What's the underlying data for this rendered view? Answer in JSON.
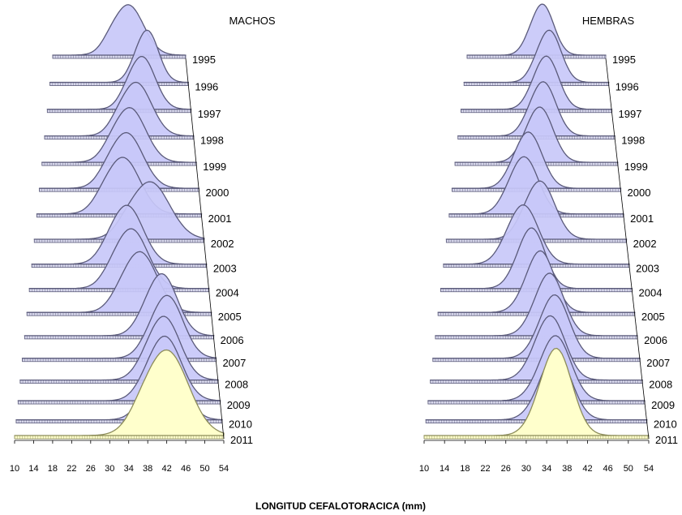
{
  "xlabel": "LONGITUD CEFALOTORACICA (mm)",
  "colors": {
    "ribbon_fill": "#c8c8f8",
    "ribbon_edge": "#5a5a7a",
    "front_fill": "#ffffcc",
    "front_edge": "#8c8c5a"
  },
  "chart_data": [
    {
      "type": "area",
      "title": "MACHOS",
      "xlim": [
        10,
        54
      ],
      "x_ticks": [
        "10",
        "14",
        "18",
        "22",
        "26",
        "30",
        "34",
        "38",
        "42",
        "46",
        "50",
        "54"
      ],
      "series": [
        {
          "name": "1995",
          "peak": 35,
          "width": 5.0
        },
        {
          "name": "1996",
          "peak": 41,
          "width": 3.5
        },
        {
          "name": "1997",
          "peak": 39,
          "width": 4.0
        },
        {
          "name": "1998",
          "peak": 37,
          "width": 4.5
        },
        {
          "name": "1999",
          "peak": 35,
          "width": 4.5
        },
        {
          "name": "2000",
          "peak": 34,
          "width": 4.5
        },
        {
          "name": "2001",
          "peak": 33,
          "width": 4.5
        },
        {
          "name": "2002",
          "peak": 40,
          "width": 5.0
        },
        {
          "name": "2003",
          "peak": 34,
          "width": 4.0
        },
        {
          "name": "2004",
          "peak": 35,
          "width": 4.0
        },
        {
          "name": "2005",
          "peak": 37,
          "width": 4.0
        },
        {
          "name": "2006",
          "peak": 42,
          "width": 3.5
        },
        {
          "name": "2007",
          "peak": 43,
          "width": 3.5
        },
        {
          "name": "2008",
          "peak": 42,
          "width": 3.5
        },
        {
          "name": "2009",
          "peak": 42,
          "width": 3.5
        },
        {
          "name": "2010",
          "peak": 42,
          "width": 3.5
        },
        {
          "name": "2011",
          "peak": 42,
          "width": 4.5
        }
      ]
    },
    {
      "type": "area",
      "title": "HEMBRAS",
      "xlim": [
        10,
        54
      ],
      "x_ticks": [
        "10",
        "14",
        "18",
        "22",
        "26",
        "30",
        "34",
        "38",
        "42",
        "46",
        "50",
        "54"
      ],
      "series": [
        {
          "name": "1995",
          "peak": 34,
          "width": 3.5
        },
        {
          "name": "1996",
          "peak": 36,
          "width": 3.5
        },
        {
          "name": "1997",
          "peak": 35,
          "width": 3.5
        },
        {
          "name": "1998",
          "peak": 34,
          "width": 3.5
        },
        {
          "name": "1999",
          "peak": 33,
          "width": 3.5
        },
        {
          "name": "2000",
          "peak": 30,
          "width": 3.5
        },
        {
          "name": "2001",
          "peak": 29,
          "width": 3.5
        },
        {
          "name": "2002",
          "peak": 33,
          "width": 3.5
        },
        {
          "name": "2003",
          "peak": 29,
          "width": 3.5
        },
        {
          "name": "2004",
          "peak": 31,
          "width": 3.0
        },
        {
          "name": "2005",
          "peak": 33,
          "width": 3.0
        },
        {
          "name": "2006",
          "peak": 35,
          "width": 3.0
        },
        {
          "name": "2007",
          "peak": 36,
          "width": 3.0
        },
        {
          "name": "2008",
          "peak": 35,
          "width": 3.0
        },
        {
          "name": "2009",
          "peak": 36,
          "width": 3.0
        },
        {
          "name": "2010",
          "peak": 36,
          "width": 3.0
        },
        {
          "name": "2011",
          "peak": 36,
          "width": 3.0
        }
      ]
    }
  ]
}
